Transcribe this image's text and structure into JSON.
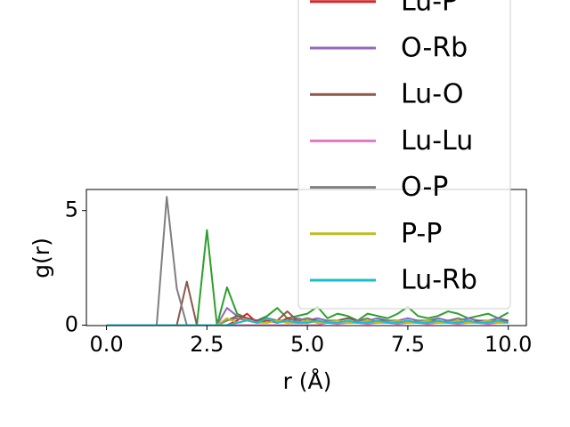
{
  "chart_data": {
    "type": "line",
    "xlabel": "r (Å)",
    "ylabel": "g(r)",
    "x": [
      0,
      0.25,
      0.5,
      0.75,
      1,
      1.25,
      1.5,
      1.75,
      2,
      2.25,
      2.5,
      2.75,
      3,
      3.25,
      3.5,
      3.75,
      4,
      4.25,
      4.5,
      4.75,
      5,
      5.25,
      5.5,
      5.75,
      6,
      6.25,
      6.5,
      6.75,
      7,
      7.25,
      7.5,
      7.75,
      8,
      8.25,
      8.5,
      8.75,
      9,
      9.25,
      9.5,
      9.75,
      10
    ],
    "xlim": [
      -0.5,
      10.45
    ],
    "xticks": [
      {
        "value": 0,
        "label": "0.0"
      },
      2.5,
      {
        "value": 5,
        "label": "5.0"
      },
      7.5,
      {
        "value": 10,
        "label": "10.0"
      }
    ],
    "ylim": [
      -0.02,
      5.92
    ],
    "yticks": [
      0,
      5
    ],
    "legend": "upper right",
    "series": [
      {
        "color": "#2ca02c",
        "values": [
          0,
          0,
          0,
          0,
          0,
          0,
          0,
          0,
          0,
          0,
          4.15,
          0,
          1.65,
          0.5,
          0.3,
          0.2,
          0.4,
          0.75,
          0.3,
          0.4,
          0.5,
          0.8,
          0.3,
          0.5,
          0.4,
          0.2,
          0.5,
          0.4,
          0.3,
          0.5,
          0.8,
          0.4,
          0.3,
          0.4,
          0.6,
          0.5,
          0.3,
          0.4,
          0.5,
          0.3,
          0.55
        ]
      },
      {
        "name": "Lu-P",
        "color": "#d62728",
        "values": [
          0,
          0,
          0,
          0,
          0,
          0,
          0,
          0,
          0,
          0,
          0,
          0,
          0,
          0.2,
          0.5,
          0.1,
          0.2,
          0.1,
          0.3,
          0.2,
          0.1,
          0.2,
          0.1,
          0.2,
          0.1,
          0.1,
          0.2,
          0.1,
          0.2,
          0.1,
          0.1,
          0.2,
          0.1,
          0.1,
          0.2,
          0.1,
          0.1,
          0.2,
          0.1,
          0.1,
          0.2
        ]
      },
      {
        "name": "O-Rb",
        "color": "#9467bd",
        "values": [
          0,
          0,
          0,
          0,
          0,
          0,
          0,
          0,
          0,
          0,
          0,
          0,
          0.75,
          0.4,
          0.3,
          0.2,
          0.3,
          0.2,
          0.2,
          0.3,
          0.2,
          0.3,
          0.2,
          0.2,
          0.3,
          0.2,
          0.2,
          0.3,
          0.2,
          0.2,
          0.3,
          0.2,
          0.2,
          0.3,
          0.2,
          0.2,
          0.3,
          0.2,
          0.2,
          0.3,
          0.2
        ]
      },
      {
        "name": "Lu-O",
        "color": "#8c564b",
        "values": [
          0,
          0,
          0,
          0,
          0,
          0,
          0,
          0,
          1.9,
          0,
          0,
          0,
          0.2,
          0.4,
          0.3,
          0.2,
          0.3,
          0.2,
          0.6,
          0.2,
          0.3,
          0.2,
          0.1,
          0.2,
          0.3,
          0.2,
          0.1,
          0.2,
          0.2,
          0.1,
          0.2,
          0.1,
          0.2,
          0.2,
          0.1,
          0.2,
          0.1,
          0.2,
          0.1,
          0.2,
          0.2
        ]
      },
      {
        "name": "Lu-Lu",
        "color": "#e377c2",
        "values": [
          0,
          0,
          0,
          0,
          0,
          0,
          0,
          0,
          0,
          0,
          0,
          0,
          0,
          0,
          0,
          0,
          0,
          0,
          0,
          0,
          0,
          0,
          0.1,
          0.05,
          0.1,
          0.1,
          0.05,
          0.1,
          0.1,
          0.05,
          0.1,
          0.1,
          0.05,
          0.1,
          0.1,
          0.05,
          0.1,
          0.1,
          0.05,
          0.1,
          0.1
        ]
      },
      {
        "name": "O-P",
        "color": "#7f7f7f",
        "values": [
          0,
          0,
          0,
          0,
          0,
          0,
          5.6,
          1.6,
          0,
          0,
          0,
          0,
          0.2,
          0.3,
          0.2,
          0.1,
          0.3,
          0.2,
          0.1,
          0.2,
          0.3,
          0.1,
          0.2,
          0.2,
          0.1,
          0.2,
          0.3,
          0.1,
          0.2,
          0.2,
          0.1,
          0.2,
          0.2,
          0.1,
          0.2,
          0.3,
          0.2,
          0.1,
          0.2,
          0.2,
          0.1
        ]
      },
      {
        "name": "P-P",
        "color": "#bcbd22",
        "values": [
          0,
          0,
          0,
          0,
          0,
          0,
          0,
          0,
          0,
          0,
          0,
          0,
          0.3,
          0.1,
          0.2,
          0.1,
          0.1,
          0.2,
          0.1,
          0.1,
          0.2,
          0.1,
          0.1,
          0.2,
          0.1,
          0.1,
          0.2,
          0.1,
          0.1,
          0.2,
          0.1,
          0.1,
          0.2,
          0.1,
          0.1,
          0.2,
          0.1,
          0.1,
          0.2,
          0.1,
          0.1
        ]
      },
      {
        "name": "Lu-Rb",
        "color": "#17becf",
        "values": [
          0,
          0,
          0,
          0,
          0,
          0,
          0,
          0,
          0,
          0,
          0,
          0,
          0,
          0.1,
          0.2,
          0.1,
          0.3,
          0.1,
          0.2,
          0.1,
          0.1,
          0.2,
          0.1,
          0.1,
          0.2,
          0.1,
          0.1,
          0.2,
          0.1,
          0.1,
          0.2,
          0.1,
          0.1,
          0.2,
          0.1,
          0.1,
          0.2,
          0.1,
          0.1,
          0.2,
          0.1
        ]
      }
    ]
  }
}
